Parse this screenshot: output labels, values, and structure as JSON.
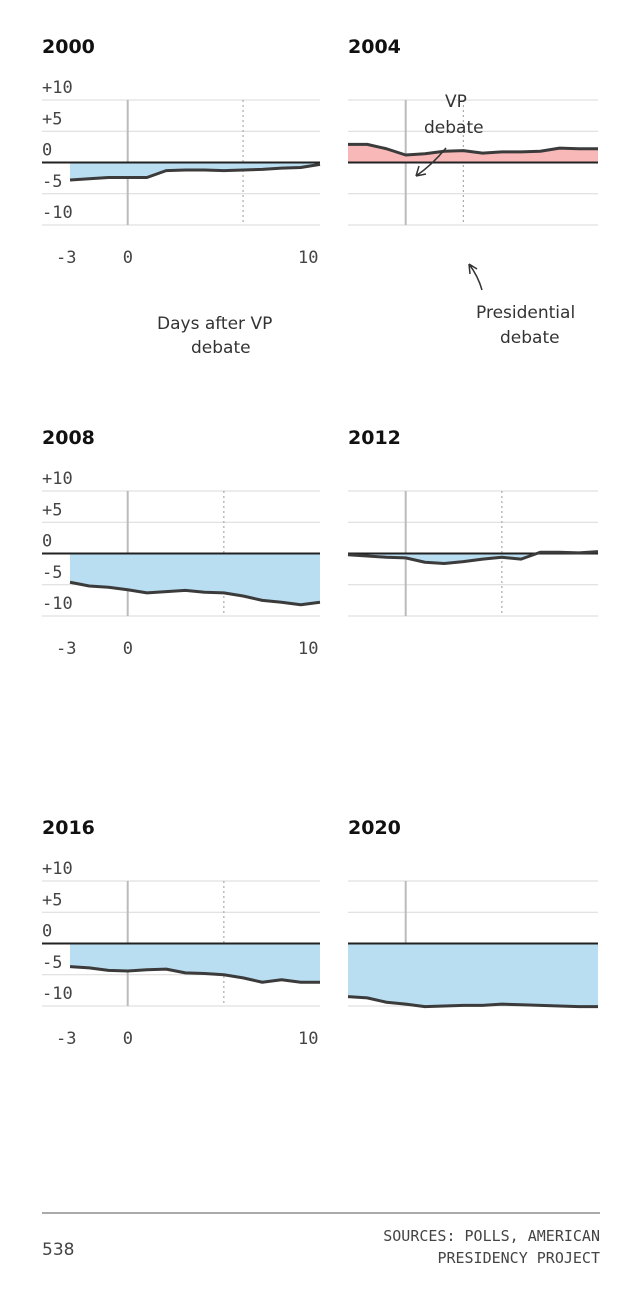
{
  "chart_data": {
    "type": "area",
    "xlabel": "Days after VP debate",
    "ylim": [
      -10,
      10
    ],
    "xlim": [
      -3,
      10
    ],
    "yticks": [
      "+10",
      "+5",
      "0",
      "-5",
      "-10"
    ],
    "xticks": [
      "-3",
      "0",
      "10"
    ],
    "colors": {
      "negative": "#b9ddf1",
      "positive": "#f9b8b8",
      "line": "#3b3b3b"
    },
    "annotations": {
      "vp": "VP debate",
      "presidential": "Presidential debate",
      "days": "Days after VP debate"
    },
    "panels": [
      {
        "title": "2000",
        "pres_debate_day": 6,
        "x": [
          -3,
          -2,
          -1,
          0,
          1,
          2,
          3,
          4,
          5,
          6,
          7,
          8,
          9,
          10
        ],
        "y": [
          -2.8,
          -2.6,
          -2.4,
          -2.4,
          -2.4,
          -1.3,
          -1.2,
          -1.2,
          -1.3,
          -1.2,
          -1.1,
          -0.9,
          -0.8,
          -0.3
        ]
      },
      {
        "title": "2004",
        "pres_debate_day": 3,
        "x": [
          -3,
          -2,
          -1,
          0,
          1,
          2,
          3,
          4,
          5,
          6,
          7,
          8,
          9,
          10
        ],
        "y": [
          2.9,
          2.9,
          2.2,
          1.2,
          1.4,
          1.8,
          1.9,
          1.5,
          1.7,
          1.7,
          1.8,
          2.3,
          2.2,
          2.2
        ]
      },
      {
        "title": "2008",
        "pres_debate_day": 5,
        "x": [
          -3,
          -2,
          -1,
          0,
          1,
          2,
          3,
          4,
          5,
          6,
          7,
          8,
          9,
          10
        ],
        "y": [
          -4.6,
          -5.2,
          -5.4,
          -5.8,
          -6.3,
          -6.1,
          -5.9,
          -6.2,
          -6.3,
          -6.8,
          -7.5,
          -7.8,
          -8.2,
          -7.8
        ]
      },
      {
        "title": "2012",
        "pres_debate_day": 5,
        "x": [
          -3,
          -2,
          -1,
          0,
          1,
          2,
          3,
          4,
          5,
          6,
          7,
          8,
          9,
          10
        ],
        "y": [
          -0.2,
          -0.4,
          -0.6,
          -0.7,
          -1.4,
          -1.6,
          -1.3,
          -0.9,
          -0.6,
          -0.9,
          0.2,
          0.2,
          0.1,
          0.3
        ]
      },
      {
        "title": "2016",
        "pres_debate_day": 5,
        "x": [
          -3,
          -2,
          -1,
          0,
          1,
          2,
          3,
          4,
          5,
          6,
          7,
          8,
          9,
          10
        ],
        "y": [
          -3.7,
          -3.9,
          -4.3,
          -4.4,
          -4.2,
          -4.1,
          -4.7,
          -4.8,
          -5.0,
          -5.5,
          -6.2,
          -5.8,
          -6.2,
          -6.2
        ]
      },
      {
        "title": "2020",
        "pres_debate_day": null,
        "x": [
          -3,
          -2,
          -1,
          0,
          1,
          2,
          3,
          4,
          5,
          6,
          7,
          8,
          9,
          10
        ],
        "y": [
          -8.5,
          -8.7,
          -9.4,
          -9.7,
          -10.1,
          -10.0,
          -9.9,
          -9.9,
          -9.7,
          -9.8,
          -9.9,
          -10.0,
          -10.1,
          -10.1
        ]
      }
    ]
  },
  "footer": {
    "logo": "538",
    "sources_line1": "SOURCES: POLLS, AMERICAN",
    "sources_line2": "PRESIDENCY PROJECT"
  }
}
